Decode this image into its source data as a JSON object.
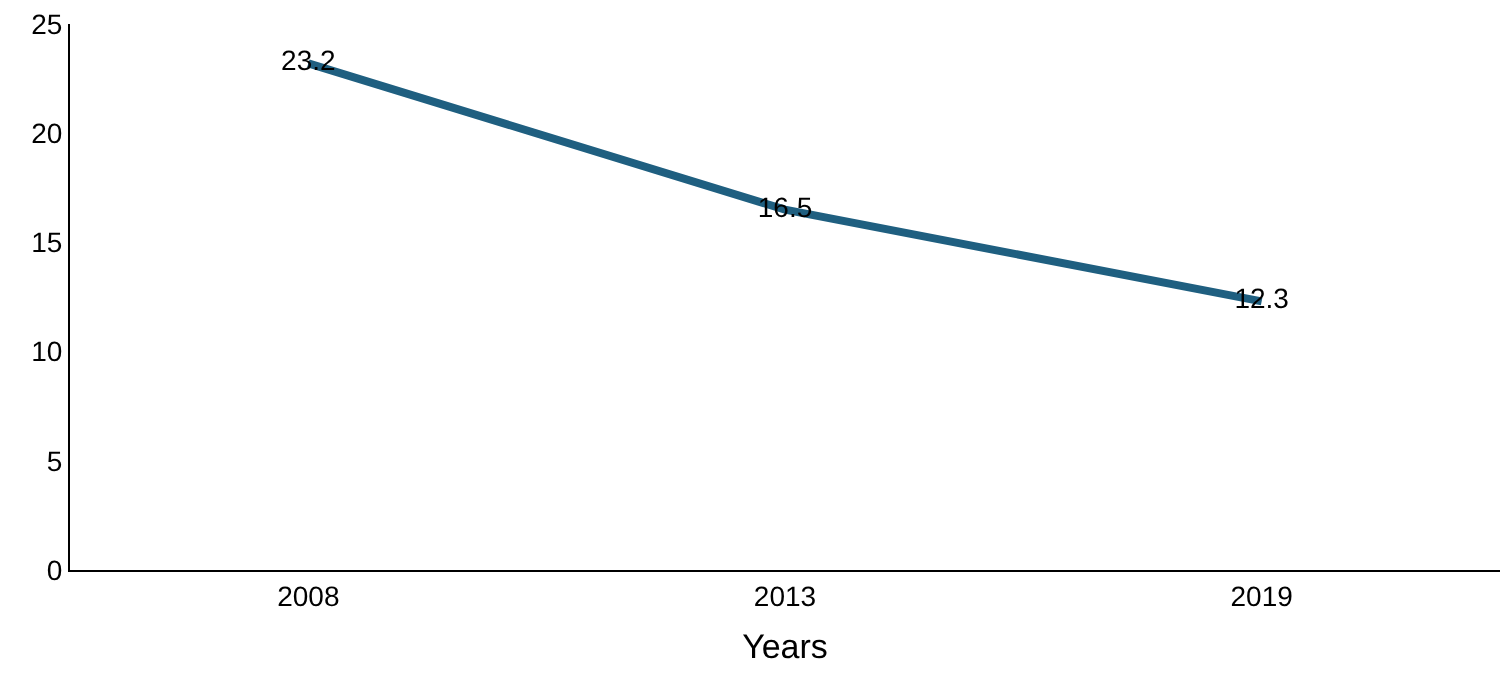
{
  "chart_data": {
    "type": "line",
    "xlabel": "Years",
    "categories": [
      "2008",
      "2013",
      "2019"
    ],
    "series": [
      {
        "color": "#1f5f80",
        "values": [
          23.2,
          16.5,
          12.3
        ]
      }
    ],
    "ylim": [
      0,
      25
    ],
    "yticks": [
      0,
      5,
      10,
      15,
      20,
      25
    ],
    "data_labels": true,
    "marker": "none",
    "line_style": "solid"
  }
}
